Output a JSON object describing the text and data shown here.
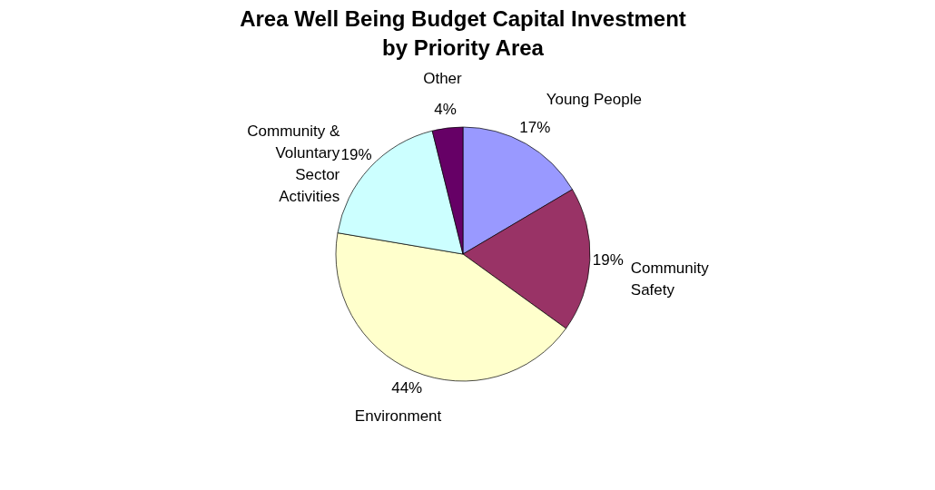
{
  "chart_data": {
    "type": "pie",
    "title": "Area Well Being Budget Capital Investment by Priority Area",
    "categories": [
      "Young People",
      "Community Safety",
      "Environment",
      "Community & Voluntary Sector Activities",
      "Other"
    ],
    "values": [
      17,
      19,
      44,
      19,
      4
    ],
    "value_labels": [
      "17%",
      "19%",
      "44%",
      "19%",
      "4%"
    ],
    "colors": [
      "#9999ff",
      "#993366",
      "#ffffcc",
      "#ccffff",
      "#660066"
    ],
    "legend": false
  }
}
